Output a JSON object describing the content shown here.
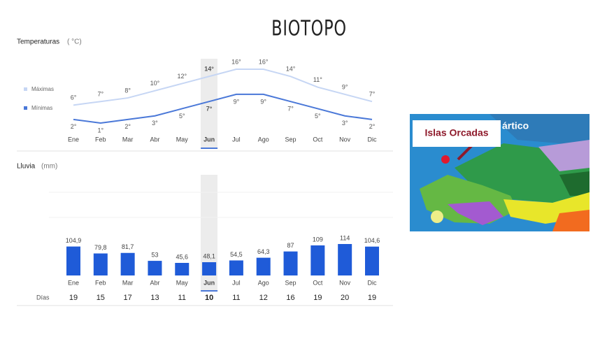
{
  "title": "BIOTOPO",
  "chart_data": [
    {
      "type": "line",
      "title": "Temperaturas",
      "subtitle": "( °C)",
      "highlight_index": 5,
      "categories": [
        "Ene",
        "Feb",
        "Mar",
        "Abr",
        "May",
        "Jun",
        "Jul",
        "Ago",
        "Sep",
        "Oct",
        "Nov",
        "Dic"
      ],
      "series": [
        {
          "name": "Máximas",
          "color": "#c6d6f4",
          "values": [
            6,
            7,
            8,
            10,
            12,
            14,
            16,
            16,
            14,
            11,
            9,
            7
          ],
          "value_labels": [
            "6°",
            "7°",
            "8°",
            "10°",
            "12°",
            "14°",
            "16°",
            "16°",
            "14°",
            "11°",
            "9°",
            "7°"
          ]
        },
        {
          "name": "Mínimas",
          "color": "#4a78d8",
          "values": [
            2,
            1,
            2,
            3,
            5,
            7,
            9,
            9,
            7,
            5,
            3,
            2
          ],
          "value_labels": [
            "2°",
            "1°",
            "2°",
            "3°",
            "5°",
            "7°",
            "9°",
            "9°",
            "7°",
            "5°",
            "3°",
            "2°"
          ]
        }
      ]
    },
    {
      "type": "bar",
      "title": "Lluvia",
      "subtitle": "(mm)",
      "color": "#1f5bd8",
      "highlight_index": 5,
      "categories": [
        "Ene",
        "Feb",
        "Mar",
        "Abr",
        "May",
        "Jun",
        "Jul",
        "Ago",
        "Sep",
        "Oct",
        "Nov",
        "Dic"
      ],
      "values": [
        104.9,
        79.8,
        81.7,
        53,
        45.6,
        48.1,
        54.5,
        64.3,
        87,
        109,
        114,
        104.6
      ],
      "value_labels": [
        "104,9",
        "79,8",
        "81,7",
        "53",
        "45,6",
        "48,1",
        "54,5",
        "64,3",
        "87",
        "109",
        "114",
        "104,6"
      ]
    },
    {
      "type": "table",
      "label": "Días",
      "highlight_index": 5,
      "values": [
        19,
        15,
        17,
        13,
        11,
        10,
        11,
        12,
        16,
        19,
        20,
        19
      ]
    }
  ],
  "map": {
    "label": "Islas Orcadas",
    "sea_label": "ártico"
  }
}
